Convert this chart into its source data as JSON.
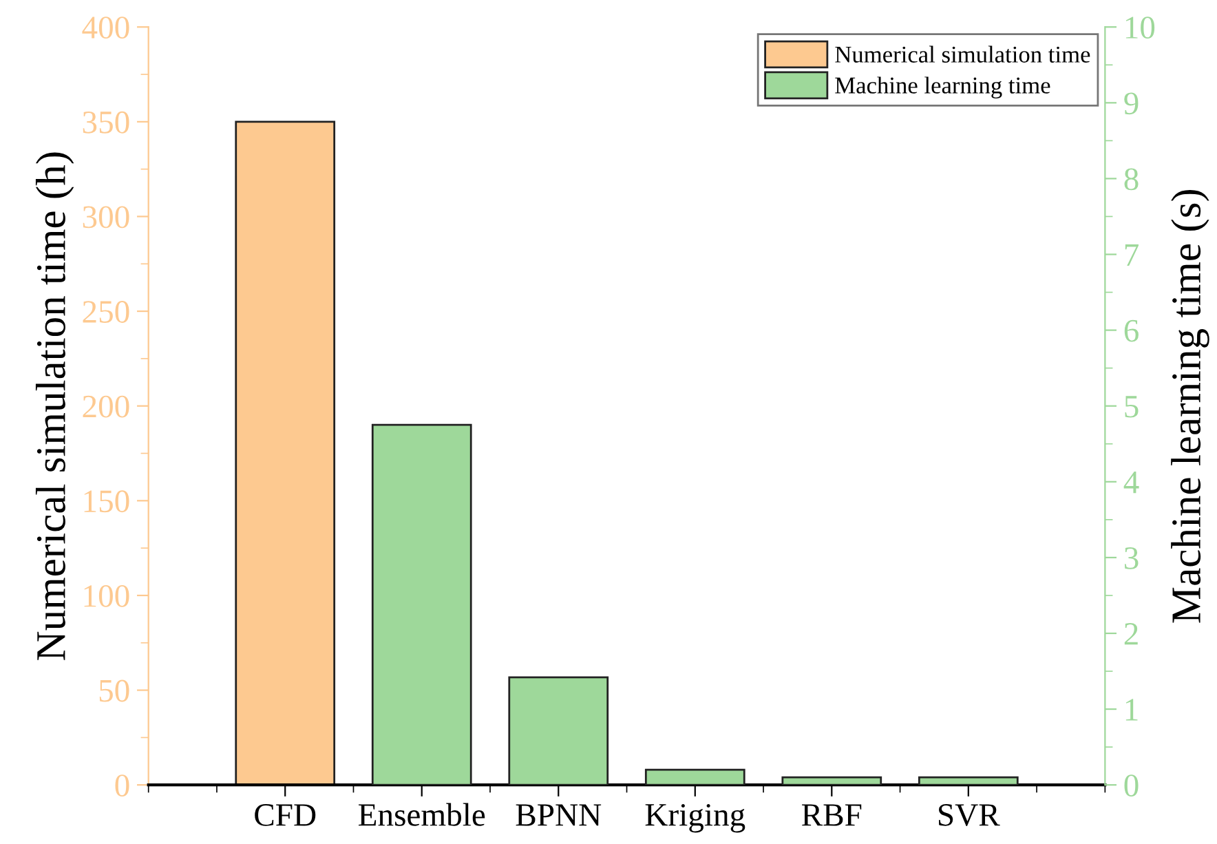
{
  "chart_data": {
    "type": "bar",
    "categories": [
      "CFD",
      "Ensemble",
      "BPNN",
      "Kriging",
      "RBF",
      "SVR"
    ],
    "ylabel": "Numerical simulation time (h)",
    "y2label": "Machine learning time (s)",
    "series": [
      {
        "name": "Numerical simulation time",
        "color": "#fdc990",
        "values": [
          350,
          null,
          null,
          null,
          null,
          null
        ]
      },
      {
        "name": "Machine learning time",
        "color": "#9ed89a",
        "axis": "y2",
        "values": [
          null,
          4.75,
          1.42,
          0.2,
          0.1,
          0.1
        ]
      }
    ],
    "ylim": [
      0,
      400
    ],
    "yticks": [
      0,
      50,
      100,
      150,
      200,
      250,
      300,
      350,
      400
    ],
    "y2lim": [
      0,
      10
    ],
    "y2ticks": [
      0,
      1,
      2,
      3,
      4,
      5,
      6,
      7,
      8,
      9,
      10
    ],
    "legend": "top right",
    "grid": false
  }
}
